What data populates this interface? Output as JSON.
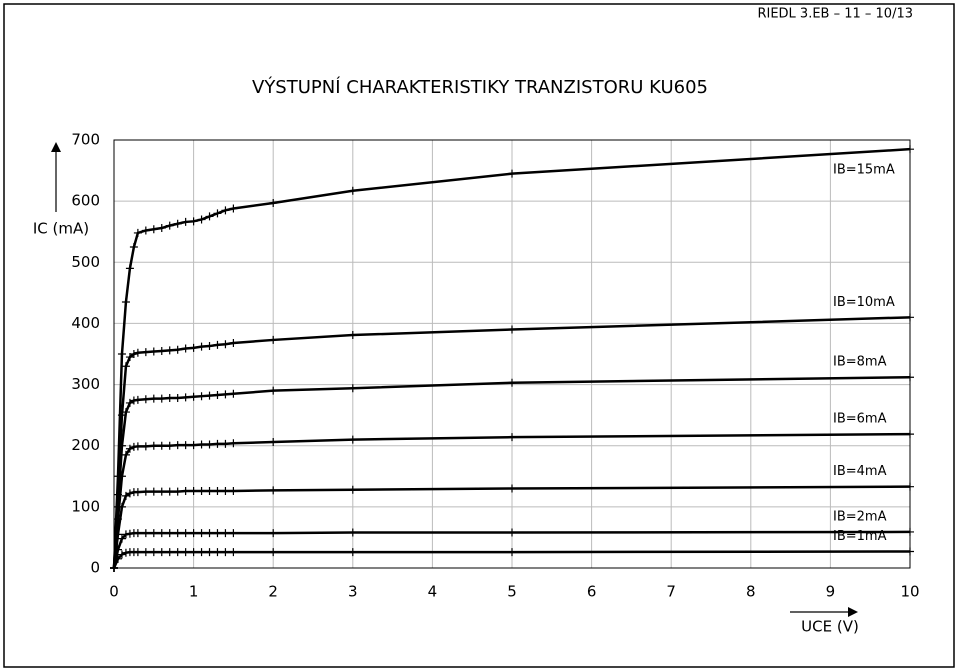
{
  "header": "RIEDL 3.EB – 11 – 10/13",
  "chart_data": {
    "type": "line",
    "title": "VÝSTUPNÍ CHARAKTERISTIKY TRANZISTORU KU605",
    "x_label": "UCE (V)",
    "y_label": "IC (mA)",
    "x": [
      0,
      0.05,
      0.1,
      0.15,
      0.2,
      0.25,
      0.3,
      0.4,
      0.5,
      0.6,
      0.7,
      0.8,
      0.9,
      1,
      1.1,
      1.2,
      1.3,
      1.4,
      1.5,
      2,
      3,
      5,
      10
    ],
    "series": [
      {
        "name": "IB=15mA",
        "color": "#000000",
        "values": [
          0,
          150,
          350,
          435,
          490,
          525,
          548,
          552,
          554,
          556,
          560,
          563,
          566,
          567,
          570,
          575,
          580,
          585,
          588,
          597,
          617,
          645,
          685
        ]
      },
      {
        "name": "IB=10mA",
        "color": "#000000",
        "values": [
          0,
          120,
          250,
          330,
          345,
          350,
          352,
          353,
          354,
          355,
          356,
          357,
          359,
          360,
          362,
          363,
          365,
          366,
          368,
          373,
          381,
          390,
          410
        ]
      },
      {
        "name": "IB=8mA",
        "color": "#000000",
        "values": [
          0,
          100,
          200,
          255,
          270,
          274,
          275,
          276,
          277,
          277,
          278,
          278,
          279,
          280,
          281,
          282,
          283,
          284,
          285,
          290,
          294,
          303,
          312
        ]
      },
      {
        "name": "IB=6mA",
        "color": "#000000",
        "values": [
          0,
          80,
          150,
          185,
          195,
          198,
          199,
          199,
          200,
          200,
          200,
          201,
          201,
          201,
          202,
          202,
          203,
          203,
          204,
          206,
          210,
          214,
          219
        ]
      },
      {
        "name": "IB=4mA",
        "color": "#000000",
        "values": [
          0,
          55,
          100,
          118,
          122,
          124,
          124,
          125,
          125,
          125,
          125,
          125,
          126,
          126,
          126,
          126,
          126,
          126,
          126,
          127,
          128,
          130,
          133
        ]
      },
      {
        "name": "IB=2mA",
        "color": "#000000",
        "values": [
          0,
          30,
          48,
          55,
          56,
          57,
          57,
          57,
          57,
          57,
          57,
          57,
          57,
          57,
          57,
          57,
          57,
          57,
          57,
          57,
          58,
          58,
          59
        ]
      },
      {
        "name": "IB=1mA",
        "color": "#000000",
        "values": [
          0,
          15,
          22,
          25,
          26,
          26,
          26,
          26,
          26,
          26,
          26,
          26,
          26,
          26,
          26,
          26,
          26,
          26,
          26,
          26,
          26,
          26,
          27
        ]
      }
    ],
    "xlim": [
      0,
      10
    ],
    "xticks": [
      0,
      1,
      2,
      3,
      4,
      5,
      6,
      7,
      8,
      9,
      10
    ],
    "ylim": [
      0,
      700
    ],
    "yticks": [
      0,
      100,
      200,
      300,
      400,
      500,
      600,
      700
    ],
    "grid": true
  }
}
